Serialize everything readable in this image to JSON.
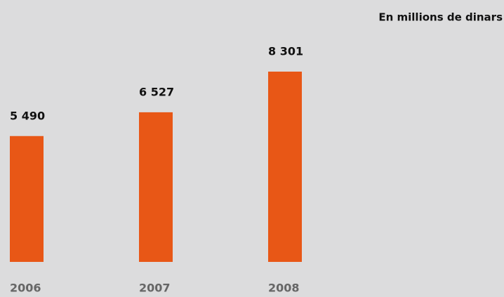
{
  "chart_data": {
    "type": "bar",
    "subtitle": "En millions de dinars",
    "categories": [
      "2006",
      "2007",
      "2008"
    ],
    "values": [
      5490,
      6527,
      8301
    ],
    "value_labels": [
      "5 490",
      "6 527",
      "8 301"
    ],
    "color": "#e85716"
  }
}
